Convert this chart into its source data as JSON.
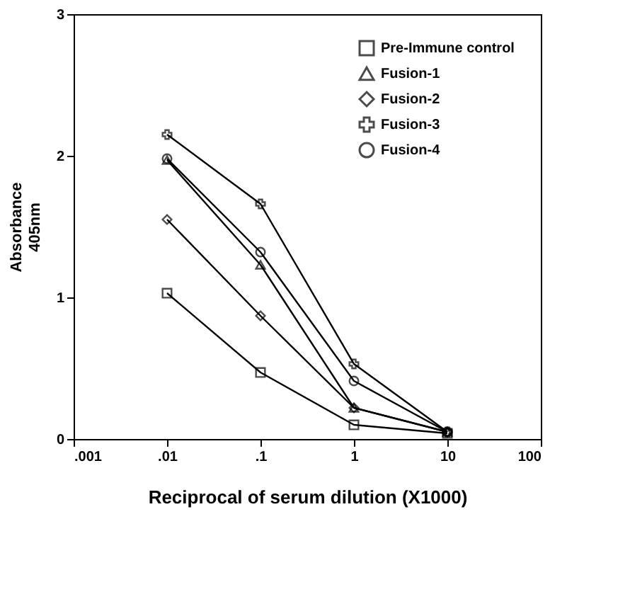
{
  "chart_data": {
    "type": "line",
    "xlabel": "Reciprocal of serum dilution (X1000)",
    "ylabel": "Absorbance\n405nm",
    "x": [
      0.01,
      0.1,
      1,
      10
    ],
    "log": "x",
    "xlim": [
      0.001,
      100
    ],
    "xticks": [
      {
        "value": 0.001,
        "label": ".001"
      },
      {
        "value": 0.01,
        "label": ".01"
      },
      {
        "value": 0.1,
        "label": ".1"
      },
      1,
      10,
      100
    ],
    "ylim": [
      0,
      3
    ],
    "yticks": [
      0,
      1,
      2,
      3
    ],
    "grid": false,
    "legend": "top right",
    "series": [
      {
        "name": "Pre-Immune control",
        "color": "#000000",
        "marker": "square",
        "values": [
          1.03,
          0.47,
          0.1,
          0.04
        ]
      },
      {
        "name": "Fusion-1",
        "color": "#000000",
        "marker": "triangle",
        "values": [
          1.97,
          1.23,
          0.22,
          0.05
        ]
      },
      {
        "name": "Fusion-2",
        "color": "#000000",
        "marker": "diamond",
        "values": [
          1.55,
          0.87,
          0.22,
          0.05
        ]
      },
      {
        "name": "Fusion-3",
        "color": "#000000",
        "marker": "cross",
        "values": [
          2.15,
          1.66,
          0.53,
          0.05
        ]
      },
      {
        "name": "Fusion-4",
        "color": "#000000",
        "marker": "circle",
        "values": [
          1.98,
          1.32,
          0.41,
          0.05
        ]
      }
    ]
  }
}
